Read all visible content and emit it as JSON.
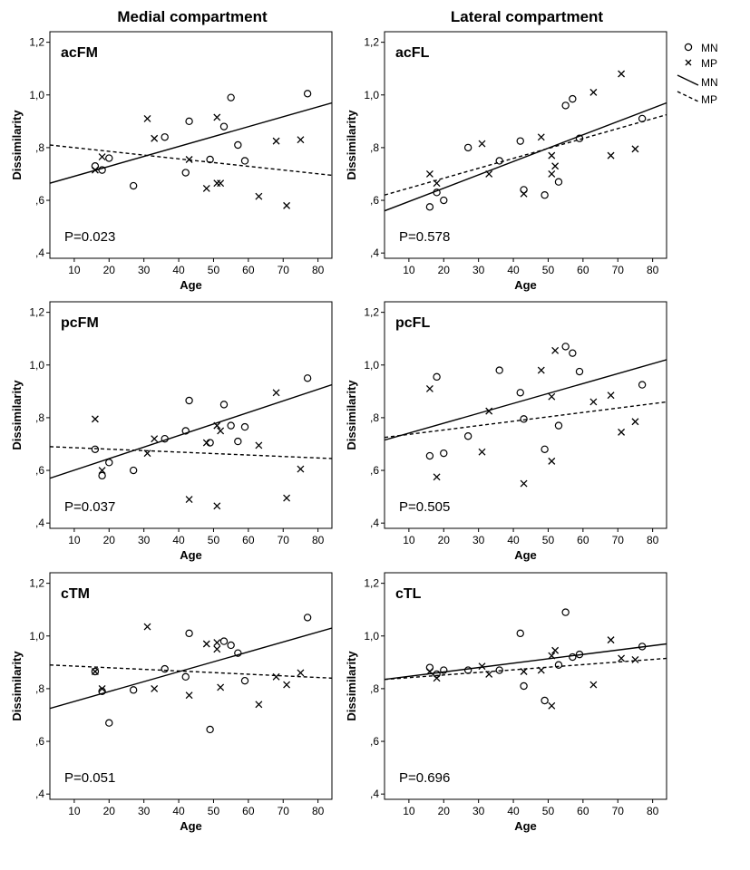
{
  "column_titles": [
    "Medial compartment",
    "Lateral compartment"
  ],
  "legend": {
    "items": [
      {
        "marker": "circle",
        "label": "MN"
      },
      {
        "marker": "cross",
        "label": "MP"
      },
      {
        "marker": "solid-line",
        "label": "MN"
      },
      {
        "marker": "dashed-line",
        "label": "MP"
      }
    ]
  },
  "chart_data": [
    {
      "type": "scatter",
      "title": "acFM",
      "xlabel": "Age",
      "ylabel": "Dissimilarity",
      "xlim": [
        3,
        84
      ],
      "ylim": [
        0.38,
        1.24
      ],
      "xticks": [
        10,
        20,
        30,
        40,
        50,
        60,
        70,
        80
      ],
      "xtick_labels": [
        "10",
        "20",
        "30",
        "40",
        "50",
        "60",
        "70",
        "80"
      ],
      "yticks": [
        0.4,
        0.6,
        0.8,
        1.0,
        1.2
      ],
      "ytick_labels": [
        ",4",
        ",6",
        ",8",
        "1,0",
        "1,2"
      ],
      "annotation": "P=0.023",
      "series": [
        {
          "name": "MN",
          "marker": "circle",
          "points": [
            [
              16,
              0.73
            ],
            [
              18,
              0.715
            ],
            [
              20,
              0.76
            ],
            [
              27,
              0.655
            ],
            [
              36,
              0.84
            ],
            [
              42,
              0.705
            ],
            [
              43,
              0.9
            ],
            [
              49,
              0.755
            ],
            [
              53,
              0.88
            ],
            [
              55,
              0.99
            ],
            [
              57,
              0.81
            ],
            [
              59,
              0.75
            ],
            [
              77,
              1.005
            ]
          ]
        },
        {
          "name": "MP",
          "marker": "cross",
          "points": [
            [
              16,
              0.715
            ],
            [
              18,
              0.765
            ],
            [
              31,
              0.91
            ],
            [
              33,
              0.835
            ],
            [
              43,
              0.755
            ],
            [
              48,
              0.645
            ],
            [
              51,
              0.915
            ],
            [
              51,
              0.665
            ],
            [
              52,
              0.665
            ],
            [
              63,
              0.615
            ],
            [
              68,
              0.825
            ],
            [
              71,
              0.58
            ],
            [
              75,
              0.83
            ]
          ]
        }
      ],
      "fits": [
        {
          "name": "MN",
          "style": "solid",
          "x": [
            3,
            84
          ],
          "y": [
            0.665,
            0.97
          ]
        },
        {
          "name": "MP",
          "style": "dashed",
          "x": [
            3,
            84
          ],
          "y": [
            0.81,
            0.695
          ]
        }
      ]
    },
    {
      "type": "scatter",
      "title": "acFL",
      "xlabel": "Age",
      "ylabel": "Dissimilarity",
      "xlim": [
        3,
        84
      ],
      "ylim": [
        0.38,
        1.24
      ],
      "xticks": [
        10,
        20,
        30,
        40,
        50,
        60,
        70,
        80
      ],
      "xtick_labels": [
        "10",
        "20",
        "30",
        "40",
        "50",
        "60",
        "70",
        "80"
      ],
      "yticks": [
        0.4,
        0.6,
        0.8,
        1.0,
        1.2
      ],
      "ytick_labels": [
        ",4",
        ",6",
        ",8",
        "1,0",
        "1,2"
      ],
      "annotation": "P=0.578",
      "series": [
        {
          "name": "MN",
          "marker": "circle",
          "points": [
            [
              16,
              0.575
            ],
            [
              18,
              0.63
            ],
            [
              20,
              0.6
            ],
            [
              27,
              0.8
            ],
            [
              36,
              0.75
            ],
            [
              42,
              0.825
            ],
            [
              43,
              0.64
            ],
            [
              49,
              0.62
            ],
            [
              53,
              0.67
            ],
            [
              55,
              0.96
            ],
            [
              57,
              0.985
            ],
            [
              59,
              0.835
            ],
            [
              77,
              0.91
            ]
          ]
        },
        {
          "name": "MP",
          "marker": "cross",
          "points": [
            [
              16,
              0.7
            ],
            [
              18,
              0.665
            ],
            [
              31,
              0.815
            ],
            [
              33,
              0.7
            ],
            [
              43,
              0.625
            ],
            [
              48,
              0.84
            ],
            [
              51,
              0.77
            ],
            [
              51,
              0.7
            ],
            [
              52,
              0.73
            ],
            [
              63,
              1.01
            ],
            [
              68,
              0.77
            ],
            [
              71,
              1.08
            ],
            [
              75,
              0.795
            ]
          ]
        }
      ],
      "fits": [
        {
          "name": "MN",
          "style": "solid",
          "x": [
            3,
            84
          ],
          "y": [
            0.56,
            0.97
          ]
        },
        {
          "name": "MP",
          "style": "dashed",
          "x": [
            3,
            84
          ],
          "y": [
            0.62,
            0.925
          ]
        }
      ]
    },
    {
      "type": "scatter",
      "title": "pcFM",
      "xlabel": "Age",
      "ylabel": "Dissimilarity",
      "xlim": [
        3,
        84
      ],
      "ylim": [
        0.38,
        1.24
      ],
      "xticks": [
        10,
        20,
        30,
        40,
        50,
        60,
        70,
        80
      ],
      "xtick_labels": [
        "10",
        "20",
        "30",
        "40",
        "50",
        "60",
        "70",
        "80"
      ],
      "yticks": [
        0.4,
        0.6,
        0.8,
        1.0,
        1.2
      ],
      "ytick_labels": [
        ",4",
        ",6",
        ",8",
        "1,0",
        "1,2"
      ],
      "annotation": "P=0.037",
      "series": [
        {
          "name": "MN",
          "marker": "circle",
          "points": [
            [
              16,
              0.68
            ],
            [
              18,
              0.58
            ],
            [
              20,
              0.63
            ],
            [
              27,
              0.6
            ],
            [
              36,
              0.72
            ],
            [
              42,
              0.75
            ],
            [
              43,
              0.865
            ],
            [
              49,
              0.705
            ],
            [
              53,
              0.85
            ],
            [
              55,
              0.77
            ],
            [
              57,
              0.71
            ],
            [
              59,
              0.765
            ],
            [
              77,
              0.95
            ]
          ]
        },
        {
          "name": "MP",
          "marker": "cross",
          "points": [
            [
              16,
              0.795
            ],
            [
              18,
              0.6
            ],
            [
              31,
              0.665
            ],
            [
              33,
              0.72
            ],
            [
              43,
              0.49
            ],
            [
              48,
              0.705
            ],
            [
              51,
              0.465
            ],
            [
              51,
              0.77
            ],
            [
              52,
              0.75
            ],
            [
              63,
              0.695
            ],
            [
              68,
              0.895
            ],
            [
              71,
              0.495
            ],
            [
              75,
              0.605
            ]
          ]
        }
      ],
      "fits": [
        {
          "name": "MN",
          "style": "solid",
          "x": [
            3,
            84
          ],
          "y": [
            0.57,
            0.925
          ]
        },
        {
          "name": "MP",
          "style": "dashed",
          "x": [
            3,
            84
          ],
          "y": [
            0.69,
            0.645
          ]
        }
      ]
    },
    {
      "type": "scatter",
      "title": "pcFL",
      "xlabel": "Age",
      "ylabel": "Dissimilarity",
      "xlim": [
        3,
        84
      ],
      "ylim": [
        0.38,
        1.24
      ],
      "xticks": [
        10,
        20,
        30,
        40,
        50,
        60,
        70,
        80
      ],
      "xtick_labels": [
        "10",
        "20",
        "30",
        "40",
        "50",
        "60",
        "70",
        "80"
      ],
      "yticks": [
        0.4,
        0.6,
        0.8,
        1.0,
        1.2
      ],
      "ytick_labels": [
        ",4",
        ",6",
        ",8",
        "1,0",
        "1,2"
      ],
      "annotation": "P=0.505",
      "series": [
        {
          "name": "MN",
          "marker": "circle",
          "points": [
            [
              16,
              0.655
            ],
            [
              18,
              0.955
            ],
            [
              20,
              0.665
            ],
            [
              27,
              0.73
            ],
            [
              36,
              0.98
            ],
            [
              42,
              0.895
            ],
            [
              43,
              0.795
            ],
            [
              49,
              0.68
            ],
            [
              53,
              0.77
            ],
            [
              55,
              1.07
            ],
            [
              57,
              1.045
            ],
            [
              59,
              0.975
            ],
            [
              77,
              0.925
            ]
          ]
        },
        {
          "name": "MP",
          "marker": "cross",
          "points": [
            [
              16,
              0.91
            ],
            [
              18,
              0.575
            ],
            [
              31,
              0.67
            ],
            [
              33,
              0.825
            ],
            [
              43,
              0.55
            ],
            [
              48,
              0.98
            ],
            [
              51,
              0.88
            ],
            [
              51,
              0.635
            ],
            [
              52,
              1.055
            ],
            [
              63,
              0.86
            ],
            [
              68,
              0.885
            ],
            [
              71,
              0.745
            ],
            [
              75,
              0.785
            ]
          ]
        }
      ],
      "fits": [
        {
          "name": "MN",
          "style": "solid",
          "x": [
            3,
            84
          ],
          "y": [
            0.715,
            1.02
          ]
        },
        {
          "name": "MP",
          "style": "dashed",
          "x": [
            3,
            84
          ],
          "y": [
            0.725,
            0.86
          ]
        }
      ]
    },
    {
      "type": "scatter",
      "title": "cTM",
      "xlabel": "Age",
      "ylabel": "Dissimilarity",
      "xlim": [
        3,
        84
      ],
      "ylim": [
        0.38,
        1.24
      ],
      "xticks": [
        10,
        20,
        30,
        40,
        50,
        60,
        70,
        80
      ],
      "xtick_labels": [
        "10",
        "20",
        "30",
        "40",
        "50",
        "60",
        "70",
        "80"
      ],
      "yticks": [
        0.4,
        0.6,
        0.8,
        1.0,
        1.2
      ],
      "ytick_labels": [
        ",4",
        ",6",
        ",8",
        "1,0",
        "1,2"
      ],
      "annotation": "P=0.051",
      "series": [
        {
          "name": "MN",
          "marker": "circle",
          "points": [
            [
              16,
              0.865
            ],
            [
              18,
              0.79
            ],
            [
              20,
              0.67
            ],
            [
              27,
              0.795
            ],
            [
              36,
              0.875
            ],
            [
              42,
              0.845
            ],
            [
              43,
              1.01
            ],
            [
              49,
              0.645
            ],
            [
              53,
              0.98
            ],
            [
              55,
              0.965
            ],
            [
              57,
              0.935
            ],
            [
              59,
              0.83
            ],
            [
              77,
              1.07
            ]
          ]
        },
        {
          "name": "MP",
          "marker": "cross",
          "points": [
            [
              16,
              0.865
            ],
            [
              18,
              0.8
            ],
            [
              31,
              1.035
            ],
            [
              33,
              0.8
            ],
            [
              43,
              0.775
            ],
            [
              48,
              0.97
            ],
            [
              51,
              0.975
            ],
            [
              51,
              0.95
            ],
            [
              52,
              0.805
            ],
            [
              63,
              0.74
            ],
            [
              68,
              0.845
            ],
            [
              71,
              0.815
            ],
            [
              75,
              0.86
            ]
          ]
        }
      ],
      "fits": [
        {
          "name": "MN",
          "style": "solid",
          "x": [
            3,
            84
          ],
          "y": [
            0.725,
            1.03
          ]
        },
        {
          "name": "MP",
          "style": "dashed",
          "x": [
            3,
            84
          ],
          "y": [
            0.89,
            0.84
          ]
        }
      ]
    },
    {
      "type": "scatter",
      "title": "cTL",
      "xlabel": "Age",
      "ylabel": "Dissimilarity",
      "xlim": [
        3,
        84
      ],
      "ylim": [
        0.38,
        1.24
      ],
      "xticks": [
        10,
        20,
        30,
        40,
        50,
        60,
        70,
        80
      ],
      "xtick_labels": [
        "10",
        "20",
        "30",
        "40",
        "50",
        "60",
        "70",
        "80"
      ],
      "yticks": [
        0.4,
        0.6,
        0.8,
        1.0,
        1.2
      ],
      "ytick_labels": [
        ",4",
        ",6",
        ",8",
        "1,0",
        "1,2"
      ],
      "annotation": "P=0.696",
      "series": [
        {
          "name": "MN",
          "marker": "circle",
          "points": [
            [
              16,
              0.88
            ],
            [
              18,
              0.855
            ],
            [
              20,
              0.87
            ],
            [
              27,
              0.87
            ],
            [
              36,
              0.87
            ],
            [
              42,
              1.01
            ],
            [
              43,
              0.81
            ],
            [
              49,
              0.755
            ],
            [
              53,
              0.89
            ],
            [
              55,
              1.09
            ],
            [
              57,
              0.92
            ],
            [
              59,
              0.93
            ],
            [
              77,
              0.96
            ]
          ]
        },
        {
          "name": "MP",
          "marker": "cross",
          "points": [
            [
              16,
              0.865
            ],
            [
              18,
              0.84
            ],
            [
              31,
              0.885
            ],
            [
              33,
              0.855
            ],
            [
              43,
              0.865
            ],
            [
              48,
              0.87
            ],
            [
              51,
              0.925
            ],
            [
              51,
              0.735
            ],
            [
              52,
              0.945
            ],
            [
              63,
              0.815
            ],
            [
              68,
              0.985
            ],
            [
              71,
              0.915
            ],
            [
              75,
              0.91
            ]
          ]
        }
      ],
      "fits": [
        {
          "name": "MN",
          "style": "solid",
          "x": [
            3,
            84
          ],
          "y": [
            0.835,
            0.97
          ]
        },
        {
          "name": "MP",
          "style": "dashed",
          "x": [
            3,
            84
          ],
          "y": [
            0.835,
            0.915
          ]
        }
      ]
    }
  ]
}
